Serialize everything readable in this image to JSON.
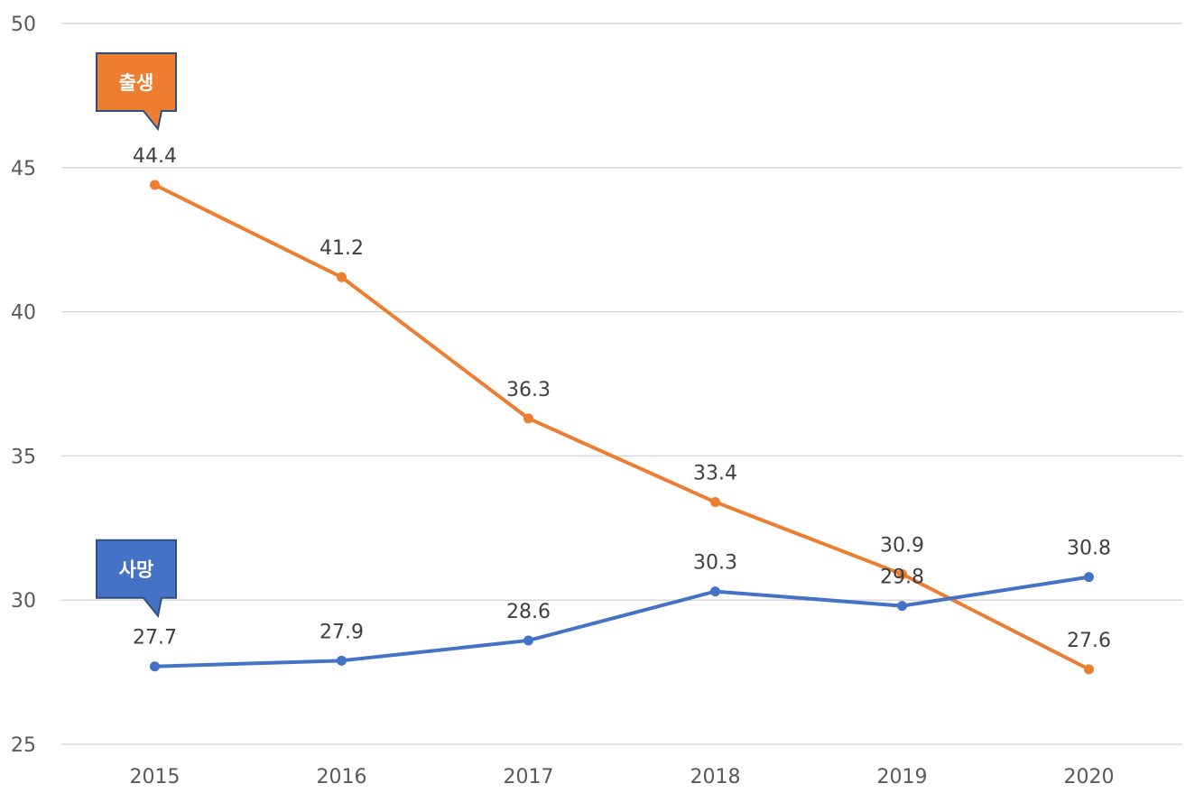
{
  "chart_data": {
    "type": "line",
    "title": "",
    "xlabel": "",
    "ylabel": "",
    "categories": [
      "2015",
      "2016",
      "2017",
      "2018",
      "2019",
      "2020"
    ],
    "ylim": [
      25,
      50
    ],
    "yticks": [
      25,
      30,
      35,
      40,
      45,
      50
    ],
    "grid": true,
    "series": [
      {
        "name": "출생",
        "color": "#ed7d31",
        "values": [
          44.4,
          41.2,
          36.3,
          33.4,
          30.9,
          27.6
        ],
        "labels": [
          "44.4",
          "41.2",
          "36.3",
          "33.4",
          "30.9",
          "27.6"
        ]
      },
      {
        "name": "사망",
        "color": "#4472c4",
        "values": [
          27.7,
          27.9,
          28.6,
          30.3,
          29.8,
          30.8
        ],
        "labels": [
          "27.7",
          "27.9",
          "28.6",
          "30.3",
          "29.8",
          "30.8"
        ]
      }
    ],
    "callouts": [
      {
        "text": "출생",
        "series": "출생",
        "color": "#ed7d31",
        "border": "#2f4f7f"
      },
      {
        "text": "사망",
        "series": "사망",
        "color": "#4472c4",
        "border": "#2f4f7f"
      }
    ]
  }
}
